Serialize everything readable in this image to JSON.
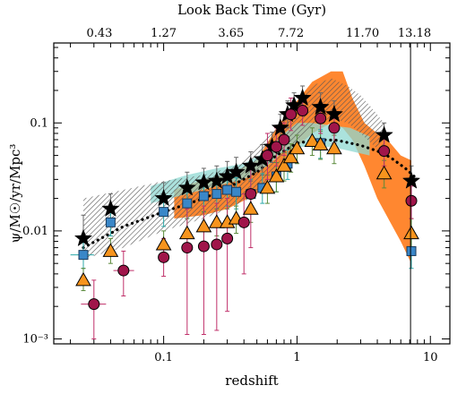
{
  "chart_data": {
    "type": "scatter",
    "xlabel": "redshift",
    "ylabel": "ψ/M☉/yr/Mpc³",
    "top_axis_label": "Look Back Time (Gyr)",
    "x_scale": "log",
    "y_scale": "log",
    "xlim": [
      0.015,
      14
    ],
    "ylim": [
      0.0009,
      0.55
    ],
    "x_ticks": [
      {
        "value": 0.1,
        "label": "0.1"
      },
      {
        "value": 1,
        "label": "1"
      },
      {
        "value": 10,
        "label": "10"
      }
    ],
    "y_ticks": [
      {
        "value": 0.001,
        "label": "10⁻³"
      },
      {
        "value": 0.01,
        "label": "0.01"
      },
      {
        "value": 0.1,
        "label": "0.1"
      }
    ],
    "top_ticks": [
      {
        "z": 0.033,
        "label": "0.43"
      },
      {
        "z": 0.1,
        "label": "1.27"
      },
      {
        "z": 0.32,
        "label": "3.65"
      },
      {
        "z": 0.9,
        "label": "7.72"
      },
      {
        "z": 3.1,
        "label": "11.70"
      },
      {
        "z": 7.6,
        "label": "13.18"
      }
    ],
    "vertical_line_z": 7.1,
    "bands": [
      {
        "name": "",
        "color": "#ff7a1a",
        "upper": [
          [
            0.12,
            0.024
          ],
          [
            0.2,
            0.03
          ],
          [
            0.3,
            0.033
          ],
          [
            0.5,
            0.045
          ],
          [
            0.7,
            0.09
          ],
          [
            1.0,
            0.16
          ],
          [
            1.3,
            0.24
          ],
          [
            1.8,
            0.3
          ],
          [
            2.2,
            0.3
          ],
          [
            2.6,
            0.17
          ],
          [
            3.2,
            0.1
          ],
          [
            4.0,
            0.08
          ],
          [
            5.0,
            0.065
          ],
          [
            6.0,
            0.05
          ],
          [
            7.2,
            0.045
          ]
        ],
        "lower": [
          [
            0.12,
            0.013
          ],
          [
            0.2,
            0.014
          ],
          [
            0.3,
            0.016
          ],
          [
            0.5,
            0.022
          ],
          [
            0.7,
            0.035
          ],
          [
            1.0,
            0.06
          ],
          [
            1.3,
            0.08
          ],
          [
            1.8,
            0.1
          ],
          [
            2.2,
            0.09
          ],
          [
            2.6,
            0.07
          ],
          [
            3.2,
            0.04
          ],
          [
            4.0,
            0.02
          ],
          [
            5.0,
            0.012
          ],
          [
            6.0,
            0.008
          ],
          [
            7.2,
            0.005
          ]
        ]
      },
      {
        "name": "",
        "color": "#8fd8d2",
        "upper": [
          [
            0.08,
            0.026
          ],
          [
            0.15,
            0.033
          ],
          [
            0.25,
            0.038
          ],
          [
            0.4,
            0.042
          ],
          [
            0.6,
            0.055
          ],
          [
            0.8,
            0.08
          ],
          [
            1.0,
            0.1
          ],
          [
            1.3,
            0.1
          ],
          [
            1.8,
            0.095
          ],
          [
            2.5,
            0.09
          ],
          [
            3.5,
            0.075
          ]
        ],
        "lower": [
          [
            0.08,
            0.018
          ],
          [
            0.15,
            0.022
          ],
          [
            0.25,
            0.026
          ],
          [
            0.4,
            0.03
          ],
          [
            0.6,
            0.04
          ],
          [
            0.8,
            0.055
          ],
          [
            1.0,
            0.06
          ],
          [
            1.3,
            0.06
          ],
          [
            1.8,
            0.06
          ],
          [
            2.5,
            0.055
          ],
          [
            3.5,
            0.05
          ]
        ]
      },
      {
        "name": "",
        "color": "#666666",
        "upper": [
          [
            0.025,
            0.02
          ],
          [
            0.05,
            0.024
          ],
          [
            0.1,
            0.029
          ],
          [
            0.2,
            0.033
          ],
          [
            0.35,
            0.04
          ],
          [
            0.5,
            0.058
          ],
          [
            0.7,
            0.09
          ],
          [
            1.0,
            0.16
          ],
          [
            1.4,
            0.23
          ],
          [
            1.8,
            0.26
          ],
          [
            2.4,
            0.22
          ],
          [
            3.0,
            0.18
          ],
          [
            3.6,
            0.14
          ],
          [
            4.5,
            0.1
          ]
        ],
        "lower": [
          [
            0.025,
            0.0055
          ],
          [
            0.05,
            0.007
          ],
          [
            0.1,
            0.01
          ],
          [
            0.2,
            0.013
          ],
          [
            0.35,
            0.017
          ],
          [
            0.5,
            0.022
          ],
          [
            0.7,
            0.04
          ],
          [
            1.0,
            0.07
          ],
          [
            1.4,
            0.1
          ],
          [
            1.8,
            0.11
          ],
          [
            2.4,
            0.1
          ],
          [
            3.0,
            0.08
          ],
          [
            3.6,
            0.065
          ],
          [
            4.5,
            0.05
          ]
        ]
      }
    ],
    "dotted_curve": [
      [
        0.025,
        0.007
      ],
      [
        0.05,
        0.011
      ],
      [
        0.1,
        0.015
      ],
      [
        0.2,
        0.02
      ],
      [
        0.3,
        0.025
      ],
      [
        0.5,
        0.035
      ],
      [
        0.7,
        0.05
      ],
      [
        1.0,
        0.065
      ],
      [
        1.5,
        0.07
      ],
      [
        2.0,
        0.069
      ],
      [
        3.0,
        0.062
      ],
      [
        4.0,
        0.055
      ],
      [
        5.0,
        0.048
      ],
      [
        6.5,
        0.038
      ],
      [
        8.0,
        0.03
      ]
    ],
    "series": [
      {
        "marker": "star",
        "color": "#000000",
        "err_color": "#666666",
        "points": [
          {
            "x": 0.025,
            "y": 0.0085,
            "lo": 0.006,
            "hi": 0.014
          },
          {
            "x": 0.04,
            "y": 0.016,
            "lo": 0.011,
            "hi": 0.022
          },
          {
            "x": 0.1,
            "y": 0.02,
            "lo": 0.014,
            "hi": 0.028
          },
          {
            "x": 0.15,
            "y": 0.025,
            "lo": 0.017,
            "hi": 0.035
          },
          {
            "x": 0.2,
            "y": 0.028,
            "lo": 0.02,
            "hi": 0.038
          },
          {
            "x": 0.25,
            "y": 0.029,
            "lo": 0.021,
            "hi": 0.04
          },
          {
            "x": 0.3,
            "y": 0.032,
            "lo": 0.023,
            "hi": 0.044
          },
          {
            "x": 0.35,
            "y": 0.035,
            "lo": 0.025,
            "hi": 0.048
          },
          {
            "x": 0.45,
            "y": 0.04,
            "lo": 0.029,
            "hi": 0.054
          },
          {
            "x": 0.55,
            "y": 0.046,
            "lo": 0.033,
            "hi": 0.063
          },
          {
            "x": 0.65,
            "y": 0.06,
            "lo": 0.043,
            "hi": 0.082
          },
          {
            "x": 0.75,
            "y": 0.09,
            "lo": 0.065,
            "hi": 0.12
          },
          {
            "x": 0.85,
            "y": 0.12,
            "lo": 0.09,
            "hi": 0.16
          },
          {
            "x": 0.95,
            "y": 0.145,
            "lo": 0.11,
            "hi": 0.19
          },
          {
            "x": 1.1,
            "y": 0.17,
            "lo": 0.13,
            "hi": 0.22
          },
          {
            "x": 1.5,
            "y": 0.14,
            "lo": 0.1,
            "hi": 0.19
          },
          {
            "x": 1.9,
            "y": 0.12,
            "lo": 0.09,
            "hi": 0.16
          },
          {
            "x": 4.5,
            "y": 0.077,
            "lo": 0.055,
            "hi": 0.1
          },
          {
            "x": 7.2,
            "y": 0.029,
            "lo": 0.02,
            "hi": 0.04
          }
        ]
      },
      {
        "marker": "square",
        "color": "#3a87c8",
        "err_color": "#2aa8a8",
        "points": [
          {
            "x": 0.025,
            "y": 0.006,
            "lo": 0.0045,
            "hi": 0.0078,
            "xlo": 0.02,
            "xhi": 0.03
          },
          {
            "x": 0.04,
            "y": 0.012,
            "lo": 0.009,
            "hi": 0.015
          },
          {
            "x": 0.1,
            "y": 0.015,
            "lo": 0.011,
            "hi": 0.02
          },
          {
            "x": 0.15,
            "y": 0.018,
            "lo": 0.013,
            "hi": 0.024
          },
          {
            "x": 0.2,
            "y": 0.021,
            "lo": 0.015,
            "hi": 0.028
          },
          {
            "x": 0.25,
            "y": 0.022,
            "lo": 0.016,
            "hi": 0.029
          },
          {
            "x": 0.3,
            "y": 0.024,
            "lo": 0.017,
            "hi": 0.032
          },
          {
            "x": 0.35,
            "y": 0.023,
            "lo": 0.016,
            "hi": 0.031
          },
          {
            "x": 0.45,
            "y": 0.022,
            "lo": 0.016,
            "hi": 0.03
          },
          {
            "x": 0.55,
            "y": 0.025,
            "lo": 0.018,
            "hi": 0.034
          },
          {
            "x": 0.7,
            "y": 0.032,
            "lo": 0.023,
            "hi": 0.043
          },
          {
            "x": 0.85,
            "y": 0.042,
            "lo": 0.03,
            "hi": 0.056
          },
          {
            "x": 1.5,
            "y": 0.065,
            "lo": 0.047,
            "hi": 0.087
          },
          {
            "x": 7.2,
            "y": 0.0065,
            "lo": 0.0045,
            "hi": 0.009
          }
        ]
      },
      {
        "marker": "triangle",
        "color": "#f7941d",
        "err_color": "#5a8a3a",
        "points": [
          {
            "x": 0.025,
            "y": 0.0035,
            "lo": 0.0028,
            "hi": 0.0045
          },
          {
            "x": 0.04,
            "y": 0.0065,
            "lo": 0.005,
            "hi": 0.0085
          },
          {
            "x": 0.1,
            "y": 0.0075,
            "lo": 0.0055,
            "hi": 0.01
          },
          {
            "x": 0.15,
            "y": 0.0095,
            "lo": 0.007,
            "hi": 0.013
          },
          {
            "x": 0.2,
            "y": 0.011,
            "lo": 0.008,
            "hi": 0.015
          },
          {
            "x": 0.25,
            "y": 0.012,
            "lo": 0.009,
            "hi": 0.016
          },
          {
            "x": 0.3,
            "y": 0.012,
            "lo": 0.009,
            "hi": 0.016
          },
          {
            "x": 0.35,
            "y": 0.013,
            "lo": 0.0095,
            "hi": 0.017
          },
          {
            "x": 0.45,
            "y": 0.016,
            "lo": 0.012,
            "hi": 0.021
          },
          {
            "x": 0.6,
            "y": 0.025,
            "lo": 0.018,
            "hi": 0.033
          },
          {
            "x": 0.7,
            "y": 0.032,
            "lo": 0.023,
            "hi": 0.043
          },
          {
            "x": 0.8,
            "y": 0.04,
            "lo": 0.029,
            "hi": 0.053
          },
          {
            "x": 0.9,
            "y": 0.048,
            "lo": 0.035,
            "hi": 0.064
          },
          {
            "x": 1.0,
            "y": 0.058,
            "lo": 0.042,
            "hi": 0.077
          },
          {
            "x": 1.3,
            "y": 0.068,
            "lo": 0.05,
            "hi": 0.09
          },
          {
            "x": 1.5,
            "y": 0.063,
            "lo": 0.046,
            "hi": 0.084
          },
          {
            "x": 1.9,
            "y": 0.058,
            "lo": 0.042,
            "hi": 0.077
          },
          {
            "x": 4.5,
            "y": 0.034,
            "lo": 0.025,
            "hi": 0.045
          },
          {
            "x": 7.2,
            "y": 0.0095,
            "lo": 0.007,
            "hi": 0.013
          }
        ]
      },
      {
        "marker": "circle",
        "color": "#a0154a",
        "err_color": "#c0306a",
        "points": [
          {
            "x": 0.03,
            "y": 0.0021,
            "lo": 0.001,
            "hi": 0.0035,
            "xlo": 0.024,
            "xhi": 0.037
          },
          {
            "x": 0.05,
            "y": 0.0043,
            "lo": 0.0025,
            "hi": 0.0065,
            "xlo": 0.042,
            "xhi": 0.06
          },
          {
            "x": 0.1,
            "y": 0.0057,
            "lo": 0.0038,
            "hi": 0.0085
          },
          {
            "x": 0.15,
            "y": 0.007,
            "lo": 0.0011,
            "hi": 0.016
          },
          {
            "x": 0.2,
            "y": 0.0072,
            "lo": 0.0011,
            "hi": 0.017
          },
          {
            "x": 0.25,
            "y": 0.0075,
            "lo": 0.0012,
            "hi": 0.018
          },
          {
            "x": 0.3,
            "y": 0.0085,
            "lo": 0.0018,
            "hi": 0.02
          },
          {
            "x": 0.4,
            "y": 0.012,
            "lo": 0.004,
            "hi": 0.022
          },
          {
            "x": 0.45,
            "y": 0.022,
            "lo": 0.007,
            "hi": 0.04
          },
          {
            "x": 0.6,
            "y": 0.05,
            "lo": 0.03,
            "hi": 0.08
          },
          {
            "x": 0.7,
            "y": 0.06,
            "lo": 0.04,
            "hi": 0.09
          },
          {
            "x": 0.8,
            "y": 0.07,
            "lo": 0.05,
            "hi": 0.1
          },
          {
            "x": 0.9,
            "y": 0.12,
            "lo": 0.085,
            "hi": 0.17
          },
          {
            "x": 1.1,
            "y": 0.13,
            "lo": 0.095,
            "hi": 0.18
          },
          {
            "x": 1.5,
            "y": 0.11,
            "lo": 0.08,
            "hi": 0.15
          },
          {
            "x": 1.9,
            "y": 0.09,
            "lo": 0.065,
            "hi": 0.12
          },
          {
            "x": 4.5,
            "y": 0.055,
            "lo": 0.04,
            "hi": 0.075
          },
          {
            "x": 7.2,
            "y": 0.019,
            "lo": 0.013,
            "hi": 0.026
          }
        ]
      }
    ]
  }
}
